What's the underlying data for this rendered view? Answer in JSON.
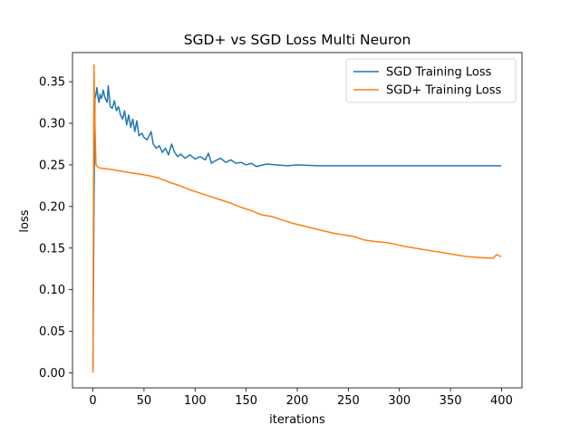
{
  "chart_data": {
    "type": "line",
    "title": "SGD+ vs SGD Loss Multi Neuron",
    "xlabel": "iterations",
    "ylabel": "loss",
    "xlim": [
      -20,
      420
    ],
    "ylim": [
      -0.018,
      0.385
    ],
    "xticks": [
      0,
      50,
      100,
      150,
      200,
      250,
      300,
      350,
      400
    ],
    "xtick_labels": [
      "0",
      "50",
      "100",
      "150",
      "200",
      "250",
      "300",
      "350",
      "400"
    ],
    "yticks": [
      0.0,
      0.05,
      0.1,
      0.15,
      0.2,
      0.25,
      0.3,
      0.35
    ],
    "ytick_labels": [
      "0.00",
      "0.05",
      "0.10",
      "0.15",
      "0.20",
      "0.25",
      "0.30",
      "0.35"
    ],
    "grid": false,
    "legend_position": "top-right",
    "series": [
      {
        "name": "SGD Training Loss",
        "color": "#1f77b4",
        "points": [
          [
            0,
            0.005
          ],
          [
            1,
            0.2
          ],
          [
            2,
            0.33
          ],
          [
            3,
            0.335
          ],
          [
            4,
            0.343
          ],
          [
            5,
            0.33
          ],
          [
            6,
            0.325
          ],
          [
            7,
            0.335
          ],
          [
            8,
            0.33
          ],
          [
            9,
            0.332
          ],
          [
            10,
            0.34
          ],
          [
            12,
            0.33
          ],
          [
            14,
            0.325
          ],
          [
            15,
            0.345
          ],
          [
            17,
            0.32
          ],
          [
            19,
            0.318
          ],
          [
            21,
            0.327
          ],
          [
            23,
            0.315
          ],
          [
            25,
            0.32
          ],
          [
            27,
            0.31
          ],
          [
            29,
            0.305
          ],
          [
            31,
            0.315
          ],
          [
            33,
            0.298
          ],
          [
            35,
            0.31
          ],
          [
            37,
            0.295
          ],
          [
            39,
            0.305
          ],
          [
            41,
            0.29
          ],
          [
            43,
            0.303
          ],
          [
            45,
            0.285
          ],
          [
            48,
            0.288
          ],
          [
            50,
            0.283
          ],
          [
            53,
            0.28
          ],
          [
            55,
            0.285
          ],
          [
            57,
            0.29
          ],
          [
            59,
            0.275
          ],
          [
            62,
            0.27
          ],
          [
            65,
            0.273
          ],
          [
            68,
            0.265
          ],
          [
            71,
            0.27
          ],
          [
            74,
            0.262
          ],
          [
            77,
            0.275
          ],
          [
            80,
            0.265
          ],
          [
            83,
            0.26
          ],
          [
            86,
            0.263
          ],
          [
            90,
            0.258
          ],
          [
            95,
            0.262
          ],
          [
            100,
            0.257
          ],
          [
            105,
            0.26
          ],
          [
            110,
            0.256
          ],
          [
            113,
            0.264
          ],
          [
            116,
            0.252
          ],
          [
            120,
            0.255
          ],
          [
            125,
            0.258
          ],
          [
            130,
            0.253
          ],
          [
            135,
            0.256
          ],
          [
            140,
            0.252
          ],
          [
            145,
            0.253
          ],
          [
            150,
            0.25
          ],
          [
            155,
            0.252
          ],
          [
            160,
            0.248
          ],
          [
            170,
            0.251
          ],
          [
            180,
            0.25
          ],
          [
            190,
            0.249
          ],
          [
            200,
            0.25
          ],
          [
            220,
            0.249
          ],
          [
            240,
            0.249
          ],
          [
            260,
            0.249
          ],
          [
            280,
            0.249
          ],
          [
            300,
            0.249
          ],
          [
            320,
            0.249
          ],
          [
            340,
            0.249
          ],
          [
            360,
            0.249
          ],
          [
            380,
            0.249
          ],
          [
            399,
            0.249
          ]
        ]
      },
      {
        "name": "SGD+ Training Loss",
        "color": "#ff7f0e",
        "points": [
          [
            0,
            0.001
          ],
          [
            1,
            0.37
          ],
          [
            2,
            0.3
          ],
          [
            3,
            0.25
          ],
          [
            5,
            0.247
          ],
          [
            8,
            0.246
          ],
          [
            15,
            0.245
          ],
          [
            25,
            0.243
          ],
          [
            35,
            0.241
          ],
          [
            45,
            0.239
          ],
          [
            55,
            0.237
          ],
          [
            65,
            0.234
          ],
          [
            75,
            0.229
          ],
          [
            85,
            0.225
          ],
          [
            95,
            0.22
          ],
          [
            105,
            0.216
          ],
          [
            115,
            0.212
          ],
          [
            125,
            0.208
          ],
          [
            135,
            0.204
          ],
          [
            145,
            0.199
          ],
          [
            155,
            0.195
          ],
          [
            165,
            0.19
          ],
          [
            175,
            0.188
          ],
          [
            185,
            0.184
          ],
          [
            195,
            0.18
          ],
          [
            205,
            0.177
          ],
          [
            215,
            0.174
          ],
          [
            225,
            0.171
          ],
          [
            235,
            0.168
          ],
          [
            245,
            0.166
          ],
          [
            255,
            0.164
          ],
          [
            265,
            0.16
          ],
          [
            275,
            0.158
          ],
          [
            285,
            0.157
          ],
          [
            295,
            0.155
          ],
          [
            305,
            0.152
          ],
          [
            315,
            0.15
          ],
          [
            325,
            0.148
          ],
          [
            335,
            0.146
          ],
          [
            345,
            0.144
          ],
          [
            355,
            0.142
          ],
          [
            365,
            0.14
          ],
          [
            375,
            0.139
          ],
          [
            385,
            0.138
          ],
          [
            392,
            0.138
          ],
          [
            395,
            0.142
          ],
          [
            399,
            0.14
          ]
        ]
      }
    ]
  }
}
